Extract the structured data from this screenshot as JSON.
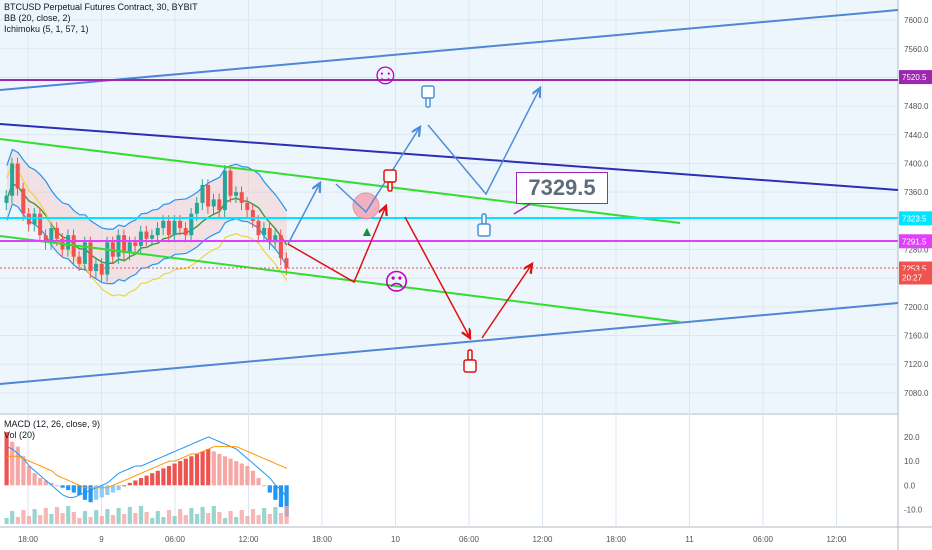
{
  "legend": {
    "symbol": "BTCUSD Perpetual Futures Contract, 30, BYBIT",
    "bb": "BB (20, close, 2)",
    "ichimoku": "Ichimoku (5, 1, 57, 1)"
  },
  "macd_legend": {
    "macd": "MACD (12, 26, close, 9)",
    "vol": "Vol (20)"
  },
  "callout": "7329.5",
  "emojis": {
    "happy": "☺",
    "sad": "☹"
  },
  "colors": {
    "up": "#26a69a",
    "down": "#ef5350",
    "channel_blue": "#4f86d6",
    "dark_blue": "#2c2fb5",
    "green_line": "#33dd33",
    "cyan_line": "#00e5ff",
    "magenta_line": "#e040fb",
    "purple_line": "#9c27b0",
    "arrow_blue": "#4a90d9",
    "arrow_red": "#e01010"
  },
  "chart_data": {
    "type": "candlestick",
    "title": "BTCUSD Perpetual Futures Contract, 30, BYBIT",
    "x_ticks": [
      "18:00",
      "9",
      "06:00",
      "12:00",
      "18:00",
      "10",
      "06:00",
      "12:00",
      "18:00",
      "11",
      "06:00",
      "12:00"
    ],
    "y_ticks": [
      "7600.0",
      "7560.0",
      "7520.0",
      "7480.0",
      "7440.0",
      "7400.0",
      "7360.0",
      "7320.0",
      "7280.0",
      "7240.0",
      "7200.0",
      "7160.0",
      "7120.0",
      "7080.0"
    ],
    "ylim": [
      7052,
      7628
    ],
    "price_labels": [
      {
        "text": "7520.5",
        "value": 7520.5,
        "color": "#9c27b0"
      },
      {
        "text": "7323.5",
        "value": 7323.5,
        "color": "#00e5ff"
      },
      {
        "text": "7291.5",
        "value": 7291.5,
        "color": "#e040fb"
      },
      {
        "text": "7253.5",
        "value": 7253.5,
        "color": "#ef5350"
      },
      {
        "text": "20:27",
        "value": 7241,
        "color": "#ef5350"
      }
    ],
    "candles_close": [
      7355,
      7400,
      7365,
      7330,
      7315,
      7330,
      7300,
      7290,
      7310,
      7295,
      7280,
      7300,
      7270,
      7260,
      7290,
      7250,
      7260,
      7245,
      7290,
      7270,
      7300,
      7275,
      7290,
      7285,
      7305,
      7295,
      7300,
      7310,
      7320,
      7300,
      7320,
      7310,
      7300,
      7330,
      7345,
      7370,
      7340,
      7350,
      7335,
      7390,
      7355,
      7360,
      7345,
      7335,
      7320,
      7300,
      7310,
      7290,
      7300,
      7268,
      7254
    ],
    "macd_y_ticks": [
      "20.0",
      "10.0",
      "0.0",
      "-10.0"
    ],
    "macd_ylim": [
      -16,
      27
    ],
    "macd_hist": [
      22,
      18,
      16,
      12,
      8,
      5,
      3,
      2,
      1,
      0,
      -1,
      -2,
      -3,
      -4,
      -6,
      -7,
      -6,
      -5,
      -4,
      -3,
      -2,
      0,
      1,
      2,
      3,
      4,
      5,
      6,
      7,
      8,
      9,
      10,
      11,
      12,
      13,
      14,
      15,
      14,
      13,
      12,
      11,
      10,
      9,
      8,
      6,
      3,
      0,
      -3,
      -6,
      -9,
      -13
    ],
    "macd_line": [
      16,
      15,
      13,
      11,
      8,
      6,
      4,
      2,
      0,
      -2,
      -4,
      -5,
      -5,
      -4,
      -3,
      -2,
      -1,
      0,
      1,
      3,
      5,
      6,
      7,
      8,
      8,
      9,
      10,
      11,
      12,
      13,
      14,
      15,
      16,
      17,
      18,
      19,
      20,
      19,
      18,
      17,
      16,
      15,
      13,
      11,
      9,
      7,
      5,
      3,
      0,
      -2,
      -5
    ],
    "signal_line": [
      12,
      12,
      12,
      11,
      10,
      9,
      8,
      7,
      6,
      4,
      3,
      2,
      1,
      0,
      -1,
      -1,
      -1,
      -1,
      -1,
      0,
      1,
      2,
      3,
      4,
      5,
      6,
      7,
      8,
      9,
      10,
      10,
      11,
      12,
      13,
      13,
      14,
      15,
      16,
      16,
      16,
      16,
      16,
      15,
      14,
      13,
      12,
      11,
      10,
      9,
      8,
      7
    ]
  }
}
